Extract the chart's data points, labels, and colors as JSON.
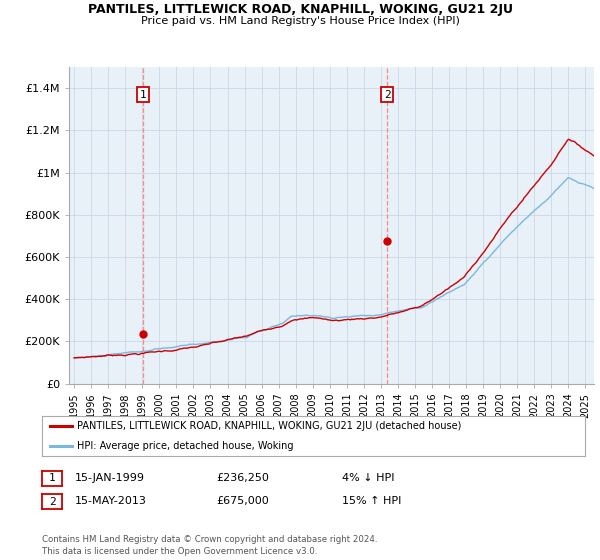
{
  "title": "PANTILES, LITTLEWICK ROAD, KNAPHILL, WOKING, GU21 2JU",
  "subtitle": "Price paid vs. HM Land Registry's House Price Index (HPI)",
  "ylabel_ticks": [
    "£0",
    "£200K",
    "£400K",
    "£600K",
    "£800K",
    "£1M",
    "£1.2M",
    "£1.4M"
  ],
  "ytick_values": [
    0,
    200000,
    400000,
    600000,
    800000,
    1000000,
    1200000,
    1400000
  ],
  "ylim": [
    0,
    1500000
  ],
  "xlim_start": 1994.7,
  "xlim_end": 2025.5,
  "sale1_date": 1999.04,
  "sale1_price": 236250,
  "sale2_date": 2013.37,
  "sale2_price": 675000,
  "sale1_text": "15-JAN-1999",
  "sale1_price_text": "£236,250",
  "sale1_hpi_text": "4% ↓ HPI",
  "sale2_text": "15-MAY-2013",
  "sale2_price_text": "£675,000",
  "sale2_hpi_text": "15% ↑ HPI",
  "hpi_color": "#7ab8e0",
  "price_color": "#cc0000",
  "vline_color": "#ff8888",
  "plot_bg_color": "#e8f0f8",
  "background_color": "#ffffff",
  "grid_color": "#c8d8e8",
  "legend_line1": "PANTILES, LITTLEWICK ROAD, KNAPHILL, WOKING, GU21 2JU (detached house)",
  "legend_line2": "HPI: Average price, detached house, Woking",
  "footer1": "Contains HM Land Registry data © Crown copyright and database right 2024.",
  "footer2": "This data is licensed under the Open Government Licence v3.0.",
  "xtick_years": [
    "1995",
    "1996",
    "1997",
    "1998",
    "1999",
    "2000",
    "2001",
    "2002",
    "2003",
    "2004",
    "2005",
    "2006",
    "2007",
    "2008",
    "2009",
    "2010",
    "2011",
    "2012",
    "2013",
    "2014",
    "2015",
    "2016",
    "2017",
    "2018",
    "2019",
    "2020",
    "2021",
    "2022",
    "2023",
    "2024",
    "2025"
  ]
}
